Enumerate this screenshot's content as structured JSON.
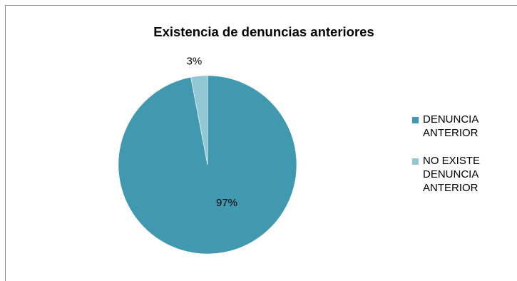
{
  "chart_data": {
    "type": "pie",
    "title": "Existencia de denuncias anteriores",
    "categories": [
      "DENUNCIA ANTERIOR",
      "NO EXISTE DENUNCIA ANTERIOR"
    ],
    "values": [
      97,
      3
    ],
    "value_labels": [
      "97%",
      "3%"
    ],
    "colors": [
      "#4199B0",
      "#93C7D4"
    ],
    "legend_position": "right"
  }
}
